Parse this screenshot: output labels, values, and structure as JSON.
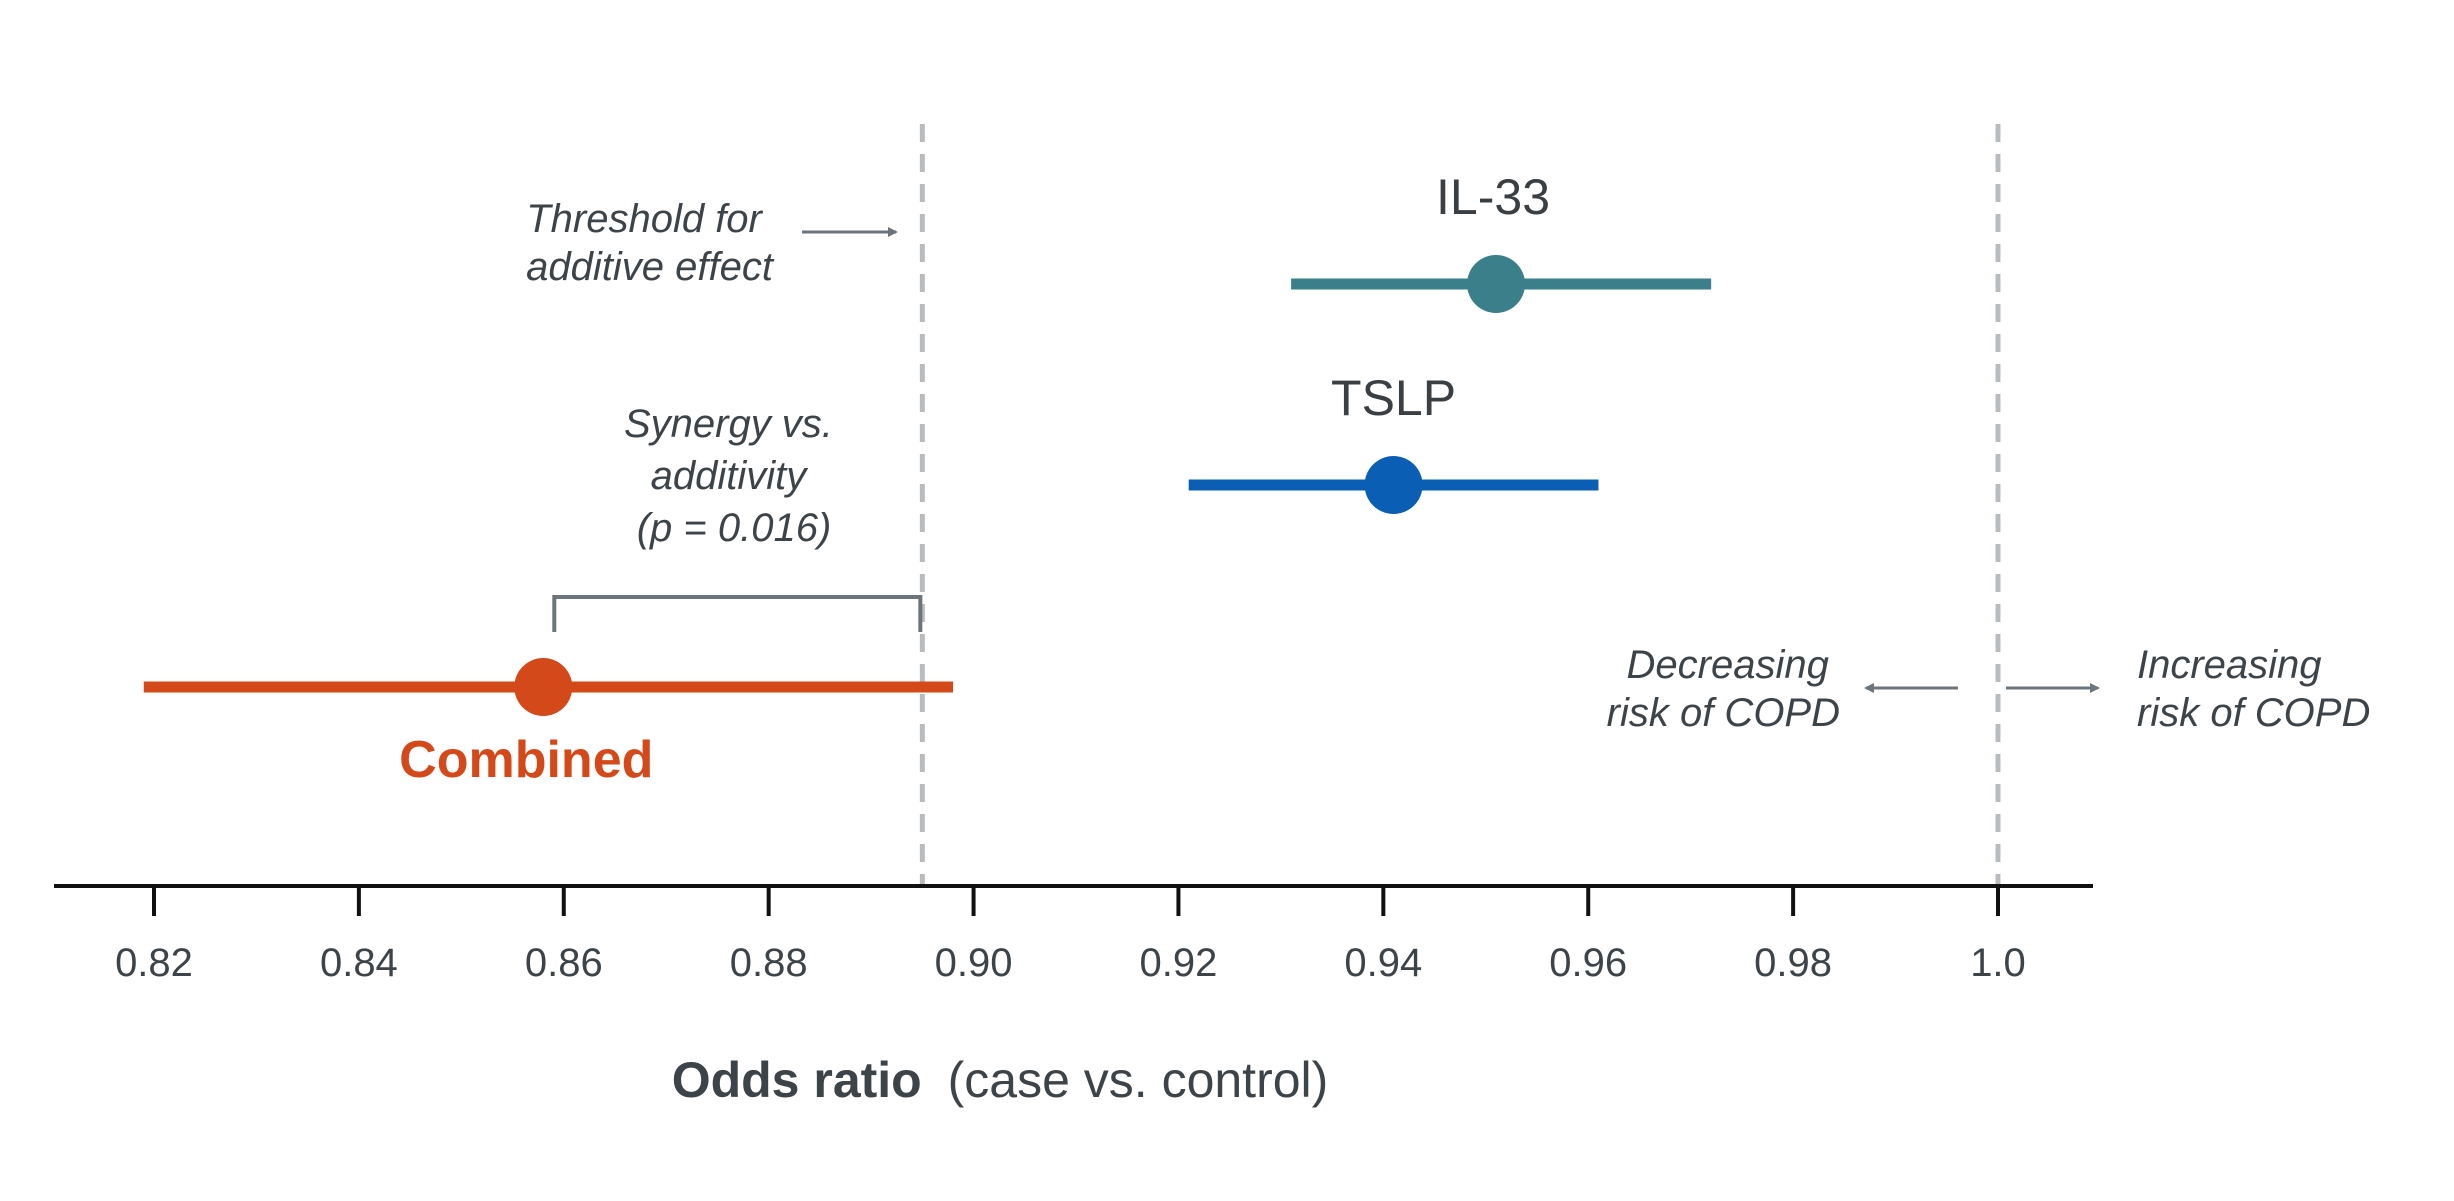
{
  "chart_data": {
    "type": "scatter",
    "subtype": "forest-plot",
    "xlabel_bold": "Odds ratio",
    "xlabel_rest": "(case vs. control)",
    "xlim": [
      0.81,
      1.01
    ],
    "ticks": [
      0.82,
      0.84,
      0.86,
      0.88,
      0.9,
      0.92,
      0.94,
      0.96,
      0.98,
      1.0
    ],
    "tick_labels": [
      "0.82",
      "0.84",
      "0.86",
      "0.88",
      "0.90",
      "0.92",
      "0.94",
      "0.96",
      "0.98",
      "1.0"
    ],
    "grid": false,
    "series": [
      {
        "name": "IL-33",
        "or": 0.951,
        "ci_low": 0.931,
        "ci_high": 0.972,
        "color": "#3a7f8a"
      },
      {
        "name": "TSLP",
        "or": 0.941,
        "ci_low": 0.921,
        "ci_high": 0.961,
        "color": "#0a5fb4"
      },
      {
        "name": "Combined",
        "or": 0.858,
        "ci_low": 0.819,
        "ci_high": 0.898,
        "color": "#d3491a"
      }
    ],
    "reference_lines": [
      {
        "x": 0.895,
        "style": "dashed"
      },
      {
        "x": 1.0,
        "style": "dashed"
      }
    ],
    "annotations": {
      "threshold": [
        "Threshold for",
        "additive effect"
      ],
      "synergy": [
        "Synergy vs.",
        "additivity",
        "(p = 0.016)"
      ],
      "decreasing": [
        "Decreasing",
        "risk of COPD"
      ],
      "increasing": [
        "Increasing",
        "risk of COPD"
      ]
    }
  }
}
